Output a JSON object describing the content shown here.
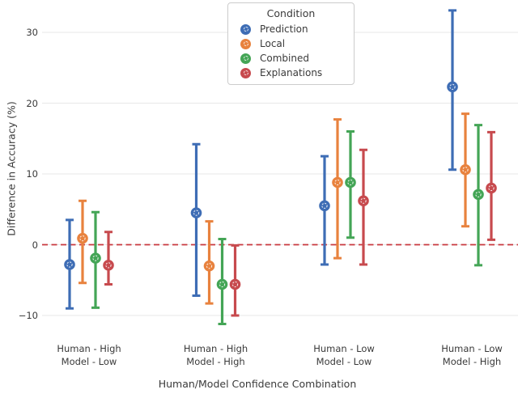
{
  "figure": {
    "background": "#ffffff",
    "grid_color": "#e7e7e7",
    "text_color": "#3a3a3a",
    "legend_border_color": "#cccccc"
  },
  "chart_data": {
    "type": "scatter",
    "subtype": "point-plot-with-error-bars",
    "title": "",
    "xlabel": "Human/Model Confidence Combination",
    "ylabel": "Difference in Accuracy (%)",
    "grid": true,
    "ylim": [
      -12.5,
      34.6
    ],
    "yticks": [
      30,
      20,
      10,
      0,
      -10
    ],
    "ytick_labels": [
      "30",
      "20",
      "10",
      "0",
      "−10"
    ],
    "categories": [
      {
        "line1": "Human - High",
        "line2": "Model - Low"
      },
      {
        "line1": "Human - High",
        "line2": "Model - High"
      },
      {
        "line1": "Human - Low",
        "line2": "Model - Low"
      },
      {
        "line1": "Human - Low",
        "line2": "Model - High"
      }
    ],
    "zero_line": {
      "y": 0,
      "style": "dashed",
      "color": "#c9383f"
    },
    "legend": {
      "title": "Condition",
      "position": "upper center"
    },
    "series": [
      {
        "name": "Prediction",
        "color": "#3e6db5",
        "marker": "circle-with-dashed-inner-ring",
        "values": [
          -2.8,
          4.5,
          5.5,
          22.3
        ],
        "ci_low": [
          -9.0,
          -7.2,
          -2.8,
          10.6
        ],
        "ci_high": [
          3.5,
          14.2,
          12.5,
          33.1
        ]
      },
      {
        "name": "Local",
        "color": "#e8823e",
        "marker": "circle-with-dashed-inner-ring",
        "values": [
          0.9,
          -3.0,
          8.8,
          10.6
        ],
        "ci_low": [
          -5.4,
          -8.3,
          -1.9,
          2.6
        ],
        "ci_high": [
          6.2,
          3.3,
          17.7,
          18.5
        ]
      },
      {
        "name": "Combined",
        "color": "#44a556",
        "marker": "circle-with-dashed-inner-ring",
        "values": [
          -1.9,
          -5.6,
          8.8,
          7.1
        ],
        "ci_low": [
          -8.9,
          -11.2,
          1.0,
          -2.9
        ],
        "ci_high": [
          4.6,
          0.8,
          16.0,
          16.9
        ]
      },
      {
        "name": "Explanations",
        "color": "#c74a4e",
        "marker": "circle-with-dashed-inner-ring",
        "values": [
          -2.9,
          -5.6,
          6.2,
          8.0
        ],
        "ci_low": [
          -5.6,
          -10.0,
          -2.8,
          0.7
        ],
        "ci_high": [
          1.8,
          -0.1,
          13.4,
          15.9
        ]
      }
    ]
  }
}
